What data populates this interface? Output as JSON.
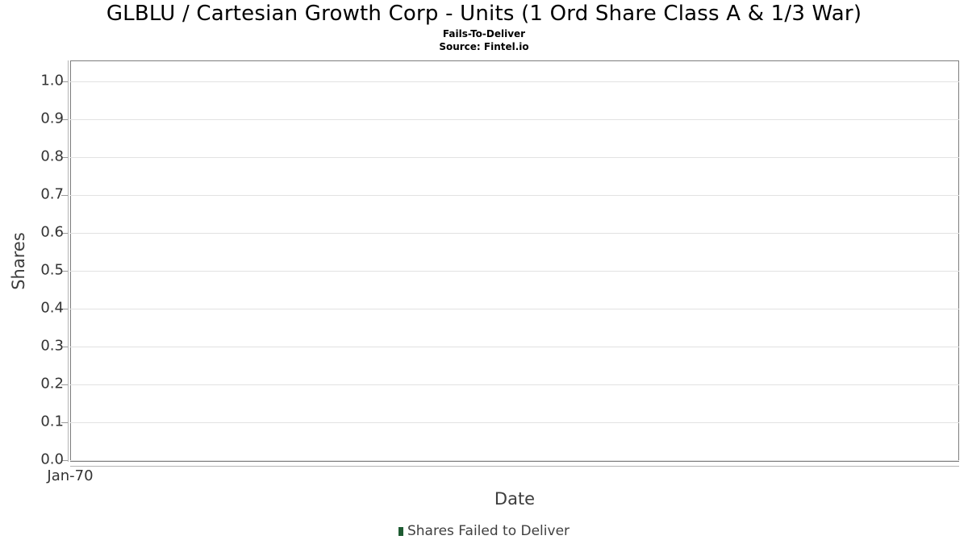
{
  "chart_data": {
    "type": "bar",
    "title": "GLBLU / Cartesian Growth Corp - Units (1 Ord Share Class A & 1/3 War)",
    "subtitle": "Fails-To-Deliver",
    "source": "Source: Fintel.io",
    "xlabel": "Date",
    "ylabel": "Shares",
    "x_ticks": [
      "Jan-70"
    ],
    "y_ticks": [
      "1.0",
      "0.9",
      "0.8",
      "0.7",
      "0.6",
      "0.5",
      "0.4",
      "0.3",
      "0.2",
      "0.1",
      "0.0"
    ],
    "ylim": [
      0.0,
      1.05
    ],
    "grid": true,
    "legend_position": "bottom",
    "series": [
      {
        "name": "Shares Failed to Deliver",
        "color": "#1e5b32",
        "x": [],
        "values": []
      }
    ],
    "colors": {
      "plot_border": "#7d7d7d",
      "gridline": "#e2e2e2",
      "axis_line": "#b4b4b4",
      "tick_mark": "#9a9a9a",
      "tick_label": "#333333",
      "axis_title": "#3d3d3d",
      "legend_text": "#404040"
    }
  }
}
